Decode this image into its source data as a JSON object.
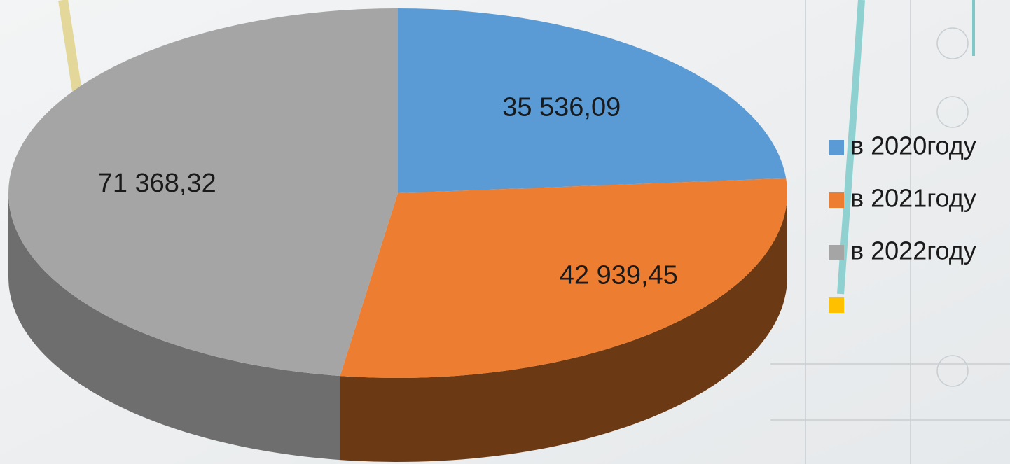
{
  "chart_data": {
    "type": "pie",
    "categories": [
      "в 2020году",
      "в 2021году",
      "в 2022году"
    ],
    "values": [
      35536.09,
      42939.45,
      71368.32
    ],
    "value_labels": [
      "35 536,09",
      "42 939,45",
      "71 368,32"
    ],
    "colors": [
      "#5b9bd5",
      "#ed7d31",
      "#a5a5a5"
    ],
    "side_colors": [
      "#2e5c8a",
      "#6b3a14",
      "#6e6e6e"
    ]
  }
}
